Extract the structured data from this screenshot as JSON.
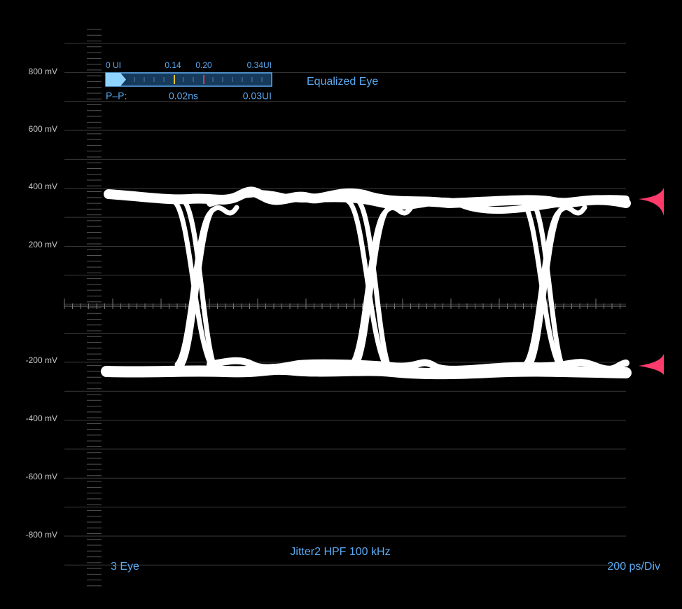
{
  "y_axis_labels": [
    "800 mV",
    "600 mV",
    "400 mV",
    "200 mV",
    "-200 mV",
    "-400 mV",
    "-600 mV",
    "-800 mV"
  ],
  "meter": {
    "scale_labels": [
      "0 UI",
      "0.14",
      "0.20",
      "0.34UI"
    ],
    "pp_label": "P–P:",
    "pp_ns": "0.02ns",
    "pp_ui": "0.03UI"
  },
  "display_title": "Equalized Eye",
  "filter_label": "Jitter2 HPF 100 kHz",
  "mode_label": "3 Eye",
  "timebase_label": "200 ps/Div"
}
